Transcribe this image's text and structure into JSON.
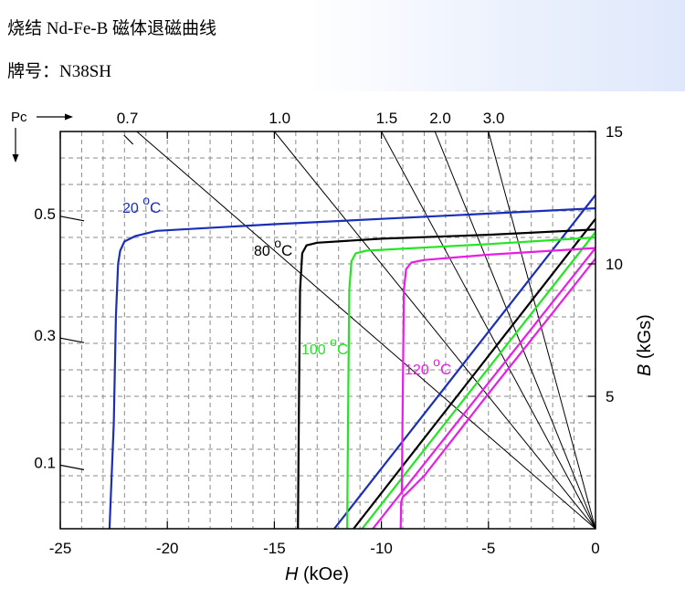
{
  "header": {
    "title": "烧结 Nd-Fe-B 磁体退磁曲线",
    "subtitle": "牌号：N38SH"
  },
  "colors": {
    "t20": "#1a2fb5",
    "t80": "#000000",
    "t100": "#22e622",
    "t120": "#e61ee6",
    "grid": "#8a8a8a"
  },
  "chart_data": {
    "type": "line",
    "xlabel_italic": "H",
    "xlabel_rest": " (kOe)",
    "ylabel_italic": "B",
    "ylabel_rest": " (kGs)",
    "left_axis_label": "Pc",
    "xlim": [
      -25,
      0
    ],
    "ylim": [
      0,
      15
    ],
    "x_ticks": [
      "-25",
      "-20",
      "-15",
      "-10",
      "-5",
      "0"
    ],
    "x_tick_values": [
      -25,
      -20,
      -15,
      -10,
      -5,
      0
    ],
    "y_ticks": [
      "5",
      "10",
      "15"
    ],
    "y_tick_values": [
      5,
      10,
      15
    ],
    "pc_lines": [
      {
        "label": "0.7",
        "value": 0.7,
        "shown_on_axis": "top"
      },
      {
        "label": "1.0",
        "value": 1.0,
        "shown_on_axis": "top"
      },
      {
        "label": "1.5",
        "value": 1.5,
        "shown_on_axis": "top"
      },
      {
        "label": "2.0",
        "value": 2.0,
        "shown_on_axis": "top"
      },
      {
        "label": "3.0",
        "value": 3.0,
        "shown_on_axis": "top"
      },
      {
        "label": "0.5",
        "value": 0.5,
        "shown_on_axis": "left",
        "y": 11.8
      },
      {
        "label": "0.3",
        "value": 0.3,
        "shown_on_axis": "left",
        "y": 7.2
      },
      {
        "label": "0.1",
        "value": 0.1,
        "shown_on_axis": "left",
        "y": 2.4
      }
    ],
    "series": [
      {
        "name": "20 oC",
        "label_base": "20 ",
        "label_sup": "o",
        "label_unit": "C",
        "color": "#1a2fb5",
        "B_curve": [
          [
            -22.7,
            0
          ],
          [
            -22.5,
            4
          ],
          [
            -22.4,
            8
          ],
          [
            -22.3,
            10
          ],
          [
            -22.2,
            10.5
          ],
          [
            -22.0,
            10.85
          ],
          [
            -21.5,
            11.05
          ],
          [
            -20.5,
            11.25
          ],
          [
            -15,
            11.5
          ],
          [
            -10,
            11.7
          ],
          [
            -5,
            11.9
          ],
          [
            0,
            12.1
          ]
        ],
        "J_line": [
          [
            -12.2,
            0
          ],
          [
            0,
            12.6
          ]
        ]
      },
      {
        "name": "80 oC",
        "label_base": "80 ",
        "label_sup": "o",
        "label_unit": "C",
        "color": "#000000",
        "B_curve": [
          [
            -13.9,
            0
          ],
          [
            -13.85,
            5
          ],
          [
            -13.8,
            9
          ],
          [
            -13.7,
            10.4
          ],
          [
            -13.5,
            10.7
          ],
          [
            -13.0,
            10.8
          ],
          [
            -10,
            10.95
          ],
          [
            -5,
            11.1
          ],
          [
            0,
            11.3
          ]
        ],
        "J_line": [
          [
            -11.3,
            0
          ],
          [
            0,
            11.7
          ]
        ]
      },
      {
        "name": "100 oC",
        "label_base": "100 ",
        "label_sup": "o",
        "label_unit": "C",
        "color": "#22e622",
        "B_curve": [
          [
            -11.6,
            0
          ],
          [
            -11.55,
            5
          ],
          [
            -11.5,
            9
          ],
          [
            -11.4,
            10.1
          ],
          [
            -11.2,
            10.4
          ],
          [
            -10.7,
            10.5
          ],
          [
            -5,
            10.75
          ],
          [
            0,
            11.0
          ]
        ],
        "J_line": [
          [
            -10.9,
            0
          ],
          [
            0,
            11.2
          ]
        ]
      },
      {
        "name": "120 oC",
        "label_base": "120 ",
        "label_sup": "o",
        "label_unit": "C",
        "color": "#e61ee6",
        "B_curve": [
          [
            -9.1,
            0
          ],
          [
            -9.08,
            1.0
          ],
          [
            -9.0,
            1.2
          ],
          [
            -8.8,
            1.35
          ],
          [
            -8.0,
            2.0
          ],
          [
            -5,
            5.1
          ],
          [
            -2,
            8.15
          ],
          [
            0,
            10.2
          ]
        ],
        "B_curve_upper": [
          [
            -9.05,
            1.3
          ],
          [
            -9.0,
            5
          ],
          [
            -8.95,
            9
          ],
          [
            -8.85,
            9.8
          ],
          [
            -8.6,
            10.05
          ],
          [
            -8,
            10.15
          ],
          [
            -5,
            10.35
          ],
          [
            0,
            10.6
          ]
        ],
        "J_line": [
          [
            -10.4,
            0
          ],
          [
            0,
            10.6
          ]
        ]
      }
    ],
    "grid": true
  }
}
